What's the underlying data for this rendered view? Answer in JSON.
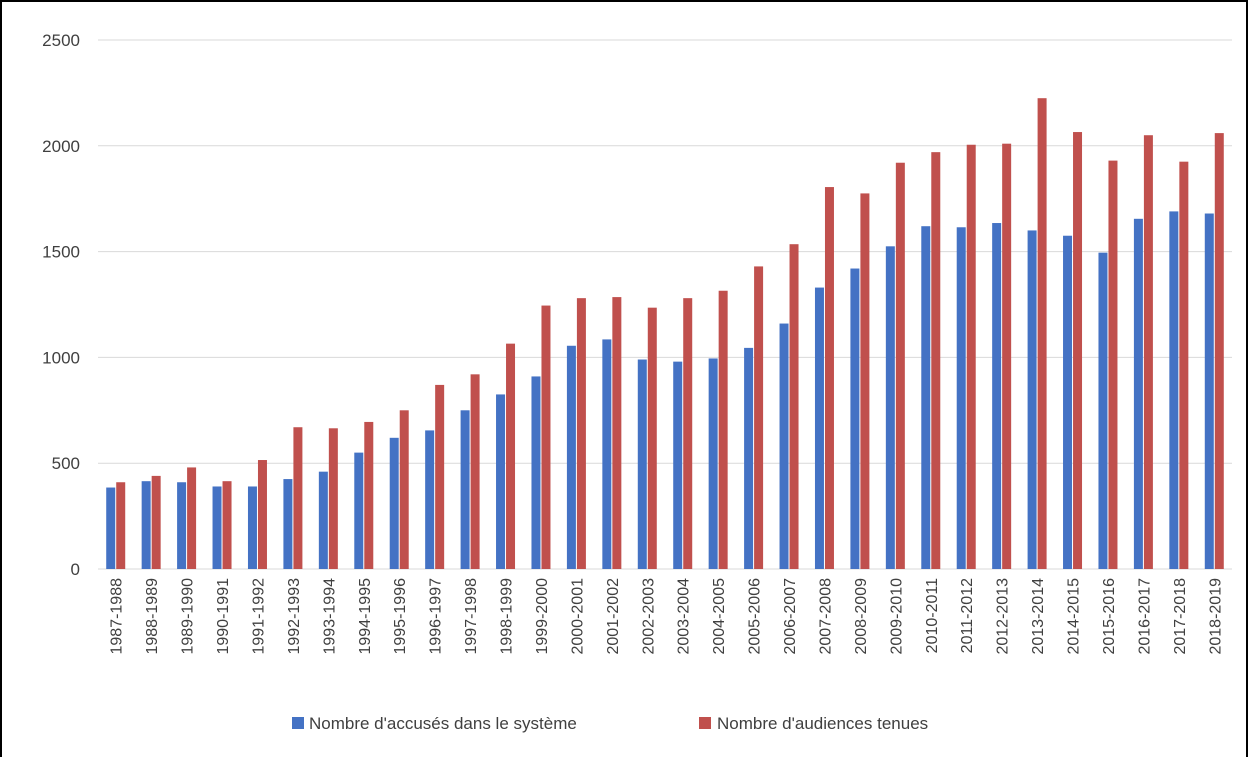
{
  "chart_data": {
    "type": "bar",
    "categories": [
      "1987-1988",
      "1988-1989",
      "1989-1990",
      "1990-1991",
      "1991-1992",
      "1992-1993",
      "1993-1994",
      "1994-1995",
      "1995-1996",
      "1996-1997",
      "1997-1998",
      "1998-1999",
      "1999-2000",
      "2000-2001",
      "2001-2002",
      "2002-2003",
      "2003-2004",
      "2004-2005",
      "2005-2006",
      "2006-2007",
      "2007-2008",
      "2008-2009",
      "2009-2010",
      "2010-2011",
      "2011-2012",
      "2012-2013",
      "2013-2014",
      "2014-2015",
      "2015-2016",
      "2016-2017",
      "2017-2018",
      "2018-2019"
    ],
    "series": [
      {
        "name": "Nombre d'accusés dans le système",
        "color": "#4472C4",
        "values": [
          385,
          415,
          410,
          390,
          390,
          425,
          460,
          550,
          620,
          655,
          750,
          825,
          910,
          1055,
          1085,
          990,
          980,
          995,
          1045,
          1160,
          1330,
          1420,
          1525,
          1620,
          1615,
          1635,
          1600,
          1575,
          1495,
          1655,
          1690,
          1680
        ]
      },
      {
        "name": "Nombre d'audiences tenues",
        "color": "#C0504D",
        "values": [
          410,
          440,
          480,
          415,
          515,
          670,
          665,
          695,
          750,
          870,
          920,
          1065,
          1245,
          1280,
          1285,
          1235,
          1280,
          1315,
          1430,
          1535,
          1805,
          1775,
          1920,
          1970,
          2005,
          2010,
          2225,
          2065,
          1930,
          2050,
          1925,
          2060
        ]
      }
    ],
    "ylim": [
      0,
      2500
    ],
    "yticks": [
      0,
      500,
      1000,
      1500,
      2000,
      2500
    ],
    "grid": true,
    "legend_position": "bottom"
  }
}
